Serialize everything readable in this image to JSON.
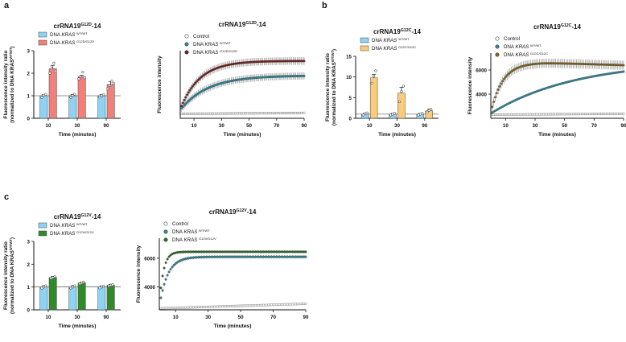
{
  "panel_labels": {
    "a": "a",
    "b": "b",
    "c": "c"
  },
  "series_labels": {
    "control": "Control",
    "dna_prefix": "DNA",
    "gene": "KRAS",
    "wt_sup": "WT/WT",
    "g12d_sup": "G12D/G12D",
    "g12c_sup": "G12C/G12C",
    "g12v_sup": "G12V/G12V"
  },
  "chart_data": [
    {
      "id": "a-bar",
      "type": "bar",
      "title_main": "crRNA19",
      "title_sup": "G12D",
      "title_tail": "-14",
      "xlabel": "Time (minutes)",
      "ylabel_line1": "Fluorescence intensity ratio",
      "ylabel_line2_main": "(normalized to DNA KRAS",
      "ylabel_line2_sup": "WT/WT",
      "ylabel_line2_tail": ")",
      "categories": [
        "10",
        "30",
        "90"
      ],
      "ylim": [
        0,
        3
      ],
      "yticks": [
        0,
        1,
        2,
        3
      ],
      "reference_line": 1,
      "series": [
        {
          "name": "DNA KRAS WT/WT",
          "color": "#8fd3f4",
          "values": [
            1.0,
            1.0,
            1.0
          ],
          "errors": [
            0.05,
            0.06,
            0.05
          ],
          "points": [
            [
              0.92,
              1.02,
              1.06
            ],
            [
              0.93,
              1.01,
              1.07
            ],
            [
              0.94,
              1.0,
              1.05
            ]
          ]
        },
        {
          "name": "DNA KRAS G12D/G12D",
          "color": "#f27f7a",
          "values": [
            2.2,
            1.85,
            1.5
          ],
          "errors": [
            0.15,
            0.06,
            0.12
          ],
          "points": [
            [
              2.0,
              2.3,
              2.45,
              2.1
            ],
            [
              1.75,
              1.85,
              2.05,
              1.8
            ],
            [
              1.3,
              1.45,
              1.65,
              1.55
            ]
          ]
        }
      ]
    },
    {
      "id": "a-line",
      "type": "scatter",
      "title_main": "crRNA19",
      "title_sup": "G12D",
      "title_tail": "-14",
      "xlabel": "Time (minutes)",
      "ylabel": "Fluorescence intensity",
      "xlim": [
        0,
        90
      ],
      "xticks": [
        10,
        30,
        50,
        70,
        90
      ],
      "ylim": [
        1700,
        7000
      ],
      "yticks": [],
      "series": [
        {
          "name": "Control",
          "curve": {
            "kind": "flat",
            "start": 2050,
            "end": 2120
          },
          "color": "#ffffff",
          "edge": "#444444"
        },
        {
          "name": "DNA KRAS WT/WT",
          "curve": {
            "kind": "exp",
            "y0": 2350,
            "ymax": 5050,
            "tau": 20
          },
          "color": "#2e8fa3",
          "err": 280
        },
        {
          "name": "DNA KRAS G12D/G12D",
          "curve": {
            "kind": "exp",
            "y0": 2400,
            "ymax": 6200,
            "tau": 14
          },
          "color": "#7a1f1a",
          "err": 300
        }
      ]
    },
    {
      "id": "b-bar",
      "type": "bar",
      "title_main": "crRNA19",
      "title_sup": "G12C",
      "title_tail": "-14",
      "xlabel": "Time (minutes)",
      "ylabel_line1": "Fluorescence intensity ratio",
      "ylabel_line2_main": "(normalized to DNA KRAS",
      "ylabel_line2_sup": "WT/WT",
      "ylabel_line2_tail": ")",
      "categories": [
        "10",
        "30",
        "90"
      ],
      "ylim": [
        0,
        15
      ],
      "yticks": [
        0,
        5,
        10,
        15
      ],
      "reference_line": 1,
      "series": [
        {
          "name": "DNA KRAS WT/WT",
          "color": "#8fd3f4",
          "values": [
            1.0,
            1.0,
            1.0
          ],
          "errors": [
            0.25,
            0.2,
            0.2
          ],
          "points": [
            [
              0.8,
              1.1,
              1.3
            ],
            [
              0.8,
              1.0,
              1.2
            ],
            [
              0.8,
              1.0,
              1.2
            ]
          ]
        },
        {
          "name": "DNA KRAS G12C/G12C",
          "color": "#f9cc7b",
          "values": [
            9.8,
            6.1,
            1.8
          ],
          "errors": [
            0.8,
            1.4,
            0.4
          ],
          "points": [
            [
              8.5,
              10.2,
              11.5
            ],
            [
              4.0,
              6.5,
              7.8
            ],
            [
              1.5,
              1.9,
              2.2
            ]
          ]
        }
      ]
    },
    {
      "id": "b-line",
      "type": "scatter",
      "title_main": "crRNA19",
      "title_sup": "G12C",
      "title_tail": "-14",
      "xlabel": "Time (minutes)",
      "ylabel": "Fluorescence intensity",
      "xlim": [
        0,
        90
      ],
      "xticks": [
        10,
        30,
        50,
        70,
        90
      ],
      "ylim": [
        2000,
        7400
      ],
      "yticks": [
        4000,
        6000
      ],
      "series": [
        {
          "name": "Control",
          "curve": {
            "kind": "flat",
            "start": 2300,
            "end": 2380
          },
          "color": "#ffffff",
          "edge": "#444444"
        },
        {
          "name": "DNA KRAS WT/WT",
          "curve": {
            "kind": "exp",
            "y0": 2400,
            "ymax": 6800,
            "tau": 58
          },
          "color": "#2e8fa3",
          "err": 60
        },
        {
          "name": "DNA KRAS G12C/G12C",
          "curve": {
            "kind": "peak",
            "y0": 2450,
            "ymax": 6600,
            "tau": 8,
            "end": 6400
          },
          "color": "#8a6a1a",
          "err": 380
        }
      ]
    },
    {
      "id": "c-bar",
      "type": "bar",
      "title_main": "crRNA19",
      "title_sup": "G12V",
      "title_tail": "-14",
      "xlabel": "Time (minutes)",
      "ylabel_line1": "Fluorescence intensity ratio",
      "ylabel_line2_main": "(normalized to DNA KRAS",
      "ylabel_line2_sup": "WT/WT",
      "ylabel_line2_tail": ")",
      "categories": [
        "10",
        "30",
        "90"
      ],
      "ylim": [
        0,
        3
      ],
      "yticks": [
        0,
        1,
        2,
        3
      ],
      "reference_line": 1,
      "series": [
        {
          "name": "DNA KRAS WT/WT",
          "color": "#8fd3f4",
          "values": [
            1.0,
            1.0,
            1.0
          ],
          "errors": [
            0.06,
            0.06,
            0.05
          ],
          "points": [
            [
              0.95,
              1.0,
              1.05
            ],
            [
              0.95,
              1.0,
              1.05
            ],
            [
              0.96,
              1.0,
              1.04
            ]
          ]
        },
        {
          "name": "DNA KRAS G12V/G12V",
          "color": "#2f8a2a",
          "values": [
            1.42,
            1.18,
            1.08
          ],
          "errors": [
            0.05,
            0.04,
            0.04
          ],
          "points": [
            [
              1.38,
              1.42,
              1.46
            ],
            [
              1.14,
              1.18,
              1.22
            ],
            [
              1.05,
              1.08,
              1.1
            ]
          ]
        }
      ]
    },
    {
      "id": "c-line",
      "type": "scatter",
      "title_main": "crRNA19",
      "title_sup": "G12V",
      "title_tail": "-14",
      "xlabel": "Time (minutes)",
      "ylabel": "Fluorescence intensity",
      "xlim": [
        0,
        90
      ],
      "xticks": [
        10,
        30,
        50,
        70,
        90
      ],
      "ylim": [
        2400,
        7400
      ],
      "yticks": [
        4000,
        6000
      ],
      "series": [
        {
          "name": "Control",
          "curve": {
            "kind": "flat",
            "start": 2500,
            "end": 2820
          },
          "color": "#ffffff",
          "edge": "#444444"
        },
        {
          "name": "DNA KRAS WT/WT",
          "curve": {
            "kind": "exp",
            "y0": 2600,
            "ymax": 6100,
            "tau": 5
          },
          "color": "#2e8fa3",
          "err": 120
        },
        {
          "name": "DNA KRAS G12V/G12V",
          "curve": {
            "kind": "exp",
            "y0": 2700,
            "ymax": 6450,
            "tau": 2.5
          },
          "color": "#2f6e22",
          "err": 100
        }
      ]
    }
  ]
}
